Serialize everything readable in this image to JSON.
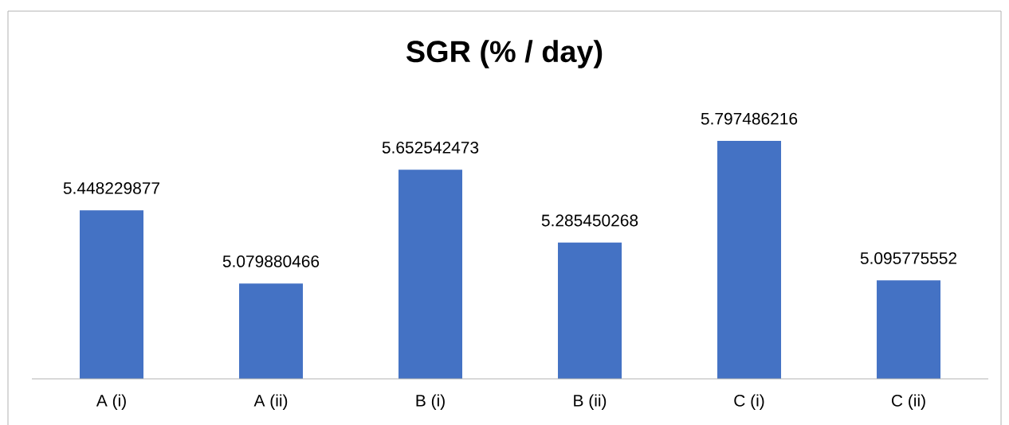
{
  "chart_data": {
    "type": "bar",
    "title": "SGR (% / day)",
    "categories": [
      "A (i)",
      "A (ii)",
      "B (i)",
      "B (ii)",
      "C (i)",
      "C (ii)"
    ],
    "values": [
      5.448229877,
      5.079880466,
      5.652542473,
      5.285450268,
      5.797486216,
      5.095775552
    ],
    "color": "#4472c4",
    "ylim": [
      4.6,
      6.45
    ],
    "data_labels": true,
    "tick_labels": "x"
  }
}
